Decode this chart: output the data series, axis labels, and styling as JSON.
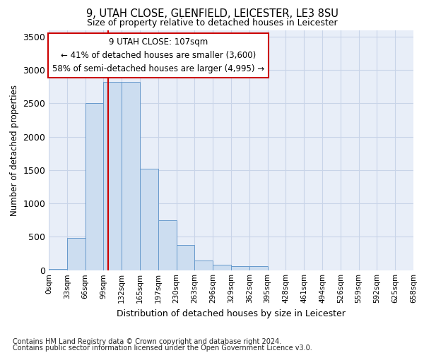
{
  "title1": "9, UTAH CLOSE, GLENFIELD, LEICESTER, LE3 8SU",
  "title2": "Size of property relative to detached houses in Leicester",
  "xlabel": "Distribution of detached houses by size in Leicester",
  "ylabel": "Number of detached properties",
  "footnote1": "Contains HM Land Registry data © Crown copyright and database right 2024.",
  "footnote2": "Contains public sector information licensed under the Open Government Licence v3.0.",
  "annotation_line1": "9 UTAH CLOSE: 107sqm",
  "annotation_line2": "← 41% of detached houses are smaller (3,600)",
  "annotation_line3": "58% of semi-detached houses are larger (4,995) →",
  "bar_values": [
    20,
    480,
    2500,
    2820,
    2820,
    1520,
    750,
    380,
    140,
    75,
    55,
    55,
    0,
    0,
    0,
    0,
    0,
    0,
    0,
    0
  ],
  "bin_labels": [
    "0sqm",
    "33sqm",
    "66sqm",
    "99sqm",
    "132sqm",
    "165sqm",
    "197sqm",
    "230sqm",
    "263sqm",
    "296sqm",
    "329sqm",
    "362sqm",
    "395sqm",
    "428sqm",
    "461sqm",
    "494sqm",
    "526sqm",
    "559sqm",
    "592sqm",
    "625sqm",
    "658sqm"
  ],
  "bar_color": "#ccddf0",
  "bar_edge_color": "#6699cc",
  "grid_color": "#c8d4e8",
  "background_color": "#e8eef8",
  "vline_color": "#cc0000",
  "vline_x": 3.24,
  "ylim": [
    0,
    3600
  ],
  "yticks": [
    0,
    500,
    1000,
    1500,
    2000,
    2500,
    3000,
    3500
  ]
}
